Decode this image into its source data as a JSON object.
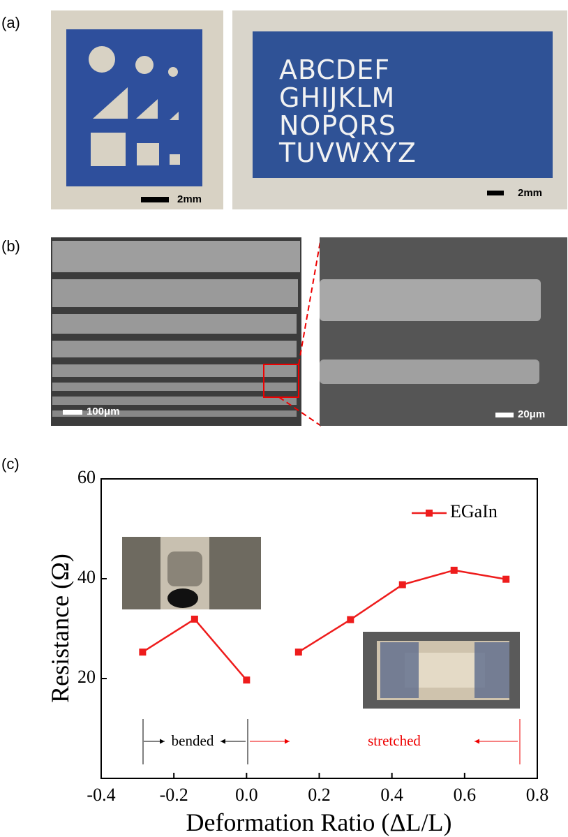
{
  "panel_labels": [
    "(a)",
    "(b)",
    "(c)"
  ],
  "panel_a": {
    "scale_bars": [
      "2mm",
      "2mm"
    ],
    "letters": [
      "ABCDEF",
      "GHIJKLM",
      "NOPQRS",
      "TUVWXYZ"
    ]
  },
  "panel_b": {
    "scale_bars": [
      "100μm",
      "20μm"
    ]
  },
  "chart_data": {
    "type": "line",
    "x_label": "Deformation Ratio (ΔL/L)",
    "y_label": "Resistance (Ω)",
    "annotations": [
      "bended",
      "stretched"
    ],
    "x": [
      -0.286,
      -0.143,
      0,
      null,
      0.143,
      0.286,
      0.429,
      0.571,
      0.714
    ],
    "series": [
      {
        "name": "EGaIn",
        "color": "#ee1c1c",
        "values": [
          25.3,
          31.9,
          19.7,
          null,
          25.3,
          31.8,
          38.8,
          41.7,
          39.9
        ]
      }
    ],
    "xlim": [
      -0.4,
      0.8
    ],
    "xticks": [
      -0.4,
      -0.2,
      {
        "value": 0,
        "label": "0.0"
      },
      0.2,
      0.4,
      0.6,
      0.8
    ],
    "ylim": [
      0,
      60
    ],
    "yticks": [
      20,
      40,
      60
    ],
    "legend": "upper right",
    "grid": false
  }
}
